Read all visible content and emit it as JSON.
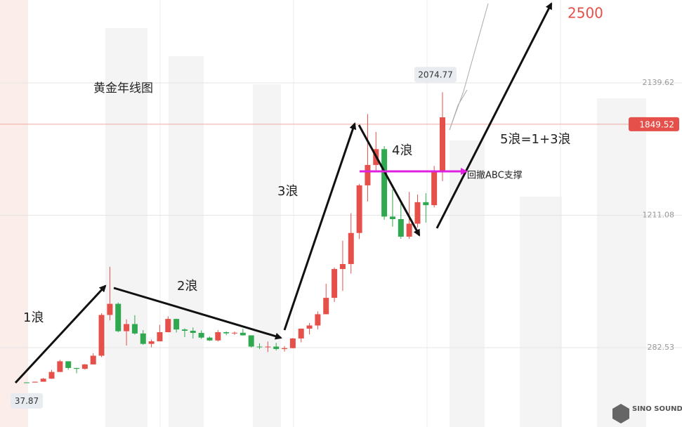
{
  "chart_data": {
    "type": "candlestick",
    "title": "黄金年线图",
    "open": [
      38.9,
      37.9,
      43.6,
      64.9,
      112,
      187,
      140,
      134,
      165,
      226,
      512,
      590,
      398,
      448,
      382,
      309,
      327,
      391,
      484,
      410,
      401,
      386,
      353,
      333,
      391,
      383,
      387,
      369,
      290,
      288,
      290,
      273,
      279,
      347,
      416,
      438,
      517,
      632,
      834,
      869,
      1087,
      1421,
      1564,
      1675,
      1202,
      1184,
      1061,
      1152,
      1303,
      1282,
      1517
    ],
    "high": [
      39.2,
      44.6,
      70,
      127,
      197,
      187,
      141,
      168,
      243,
      524,
      850,
      599,
      481,
      510,
      406,
      340,
      443,
      502,
      486,
      418,
      424,
      403,
      360,
      406,
      397,
      396,
      415,
      369,
      313,
      326,
      316,
      293,
      350,
      417,
      456,
      537,
      730,
      845,
      1033,
      1226,
      1431,
      1921,
      1796,
      1696,
      1392,
      1307,
      1375,
      1357,
      1366,
      1557,
      2074.77
    ],
    "low": [
      37.87,
      37.9,
      43.6,
      64.1,
      112,
      128,
      103,
      129,
      165,
      216,
      474,
      391,
      297,
      374,
      303,
      285,
      326,
      390,
      389,
      356,
      346,
      344,
      330,
      326,
      370,
      372,
      367,
      283,
      273,
      252,
      263,
      255,
      277,
      320,
      375,
      411,
      517,
      603,
      681,
      802,
      1044,
      1308,
      1527,
      1180,
      1131,
      1046,
      1046,
      1124,
      1160,
      1266,
      1451
    ],
    "close": [
      37.9,
      43.6,
      64.9,
      112,
      187,
      140,
      134,
      165,
      226,
      512,
      590,
      398,
      448,
      382,
      309,
      327,
      391,
      484,
      410,
      401,
      386,
      353,
      333,
      391,
      383,
      387,
      369,
      290,
      288,
      290,
      273,
      279,
      347,
      416,
      438,
      517,
      632,
      834,
      869,
      1087,
      1421,
      1564,
      1675,
      1202,
      1184,
      1061,
      1152,
      1303,
      1282,
      1517,
      1898
    ],
    "up_color": "#e5504a",
    "down_color": "#2fa84f",
    "ylim": [
      -274,
      2721
    ],
    "yticks": [
      282.53,
      1211.08,
      2139.62
    ],
    "current": 1849.52,
    "high_label": 2074.77,
    "low_label": 37.87,
    "annotations": {
      "wave1": "1浪",
      "wave2": "2浪",
      "wave3": "3浪",
      "wave4": "4浪",
      "wave5": "5浪=1+3浪",
      "support": "回撤ABC支撑",
      "target": "2500"
    },
    "logo": "SINO SOUND"
  }
}
